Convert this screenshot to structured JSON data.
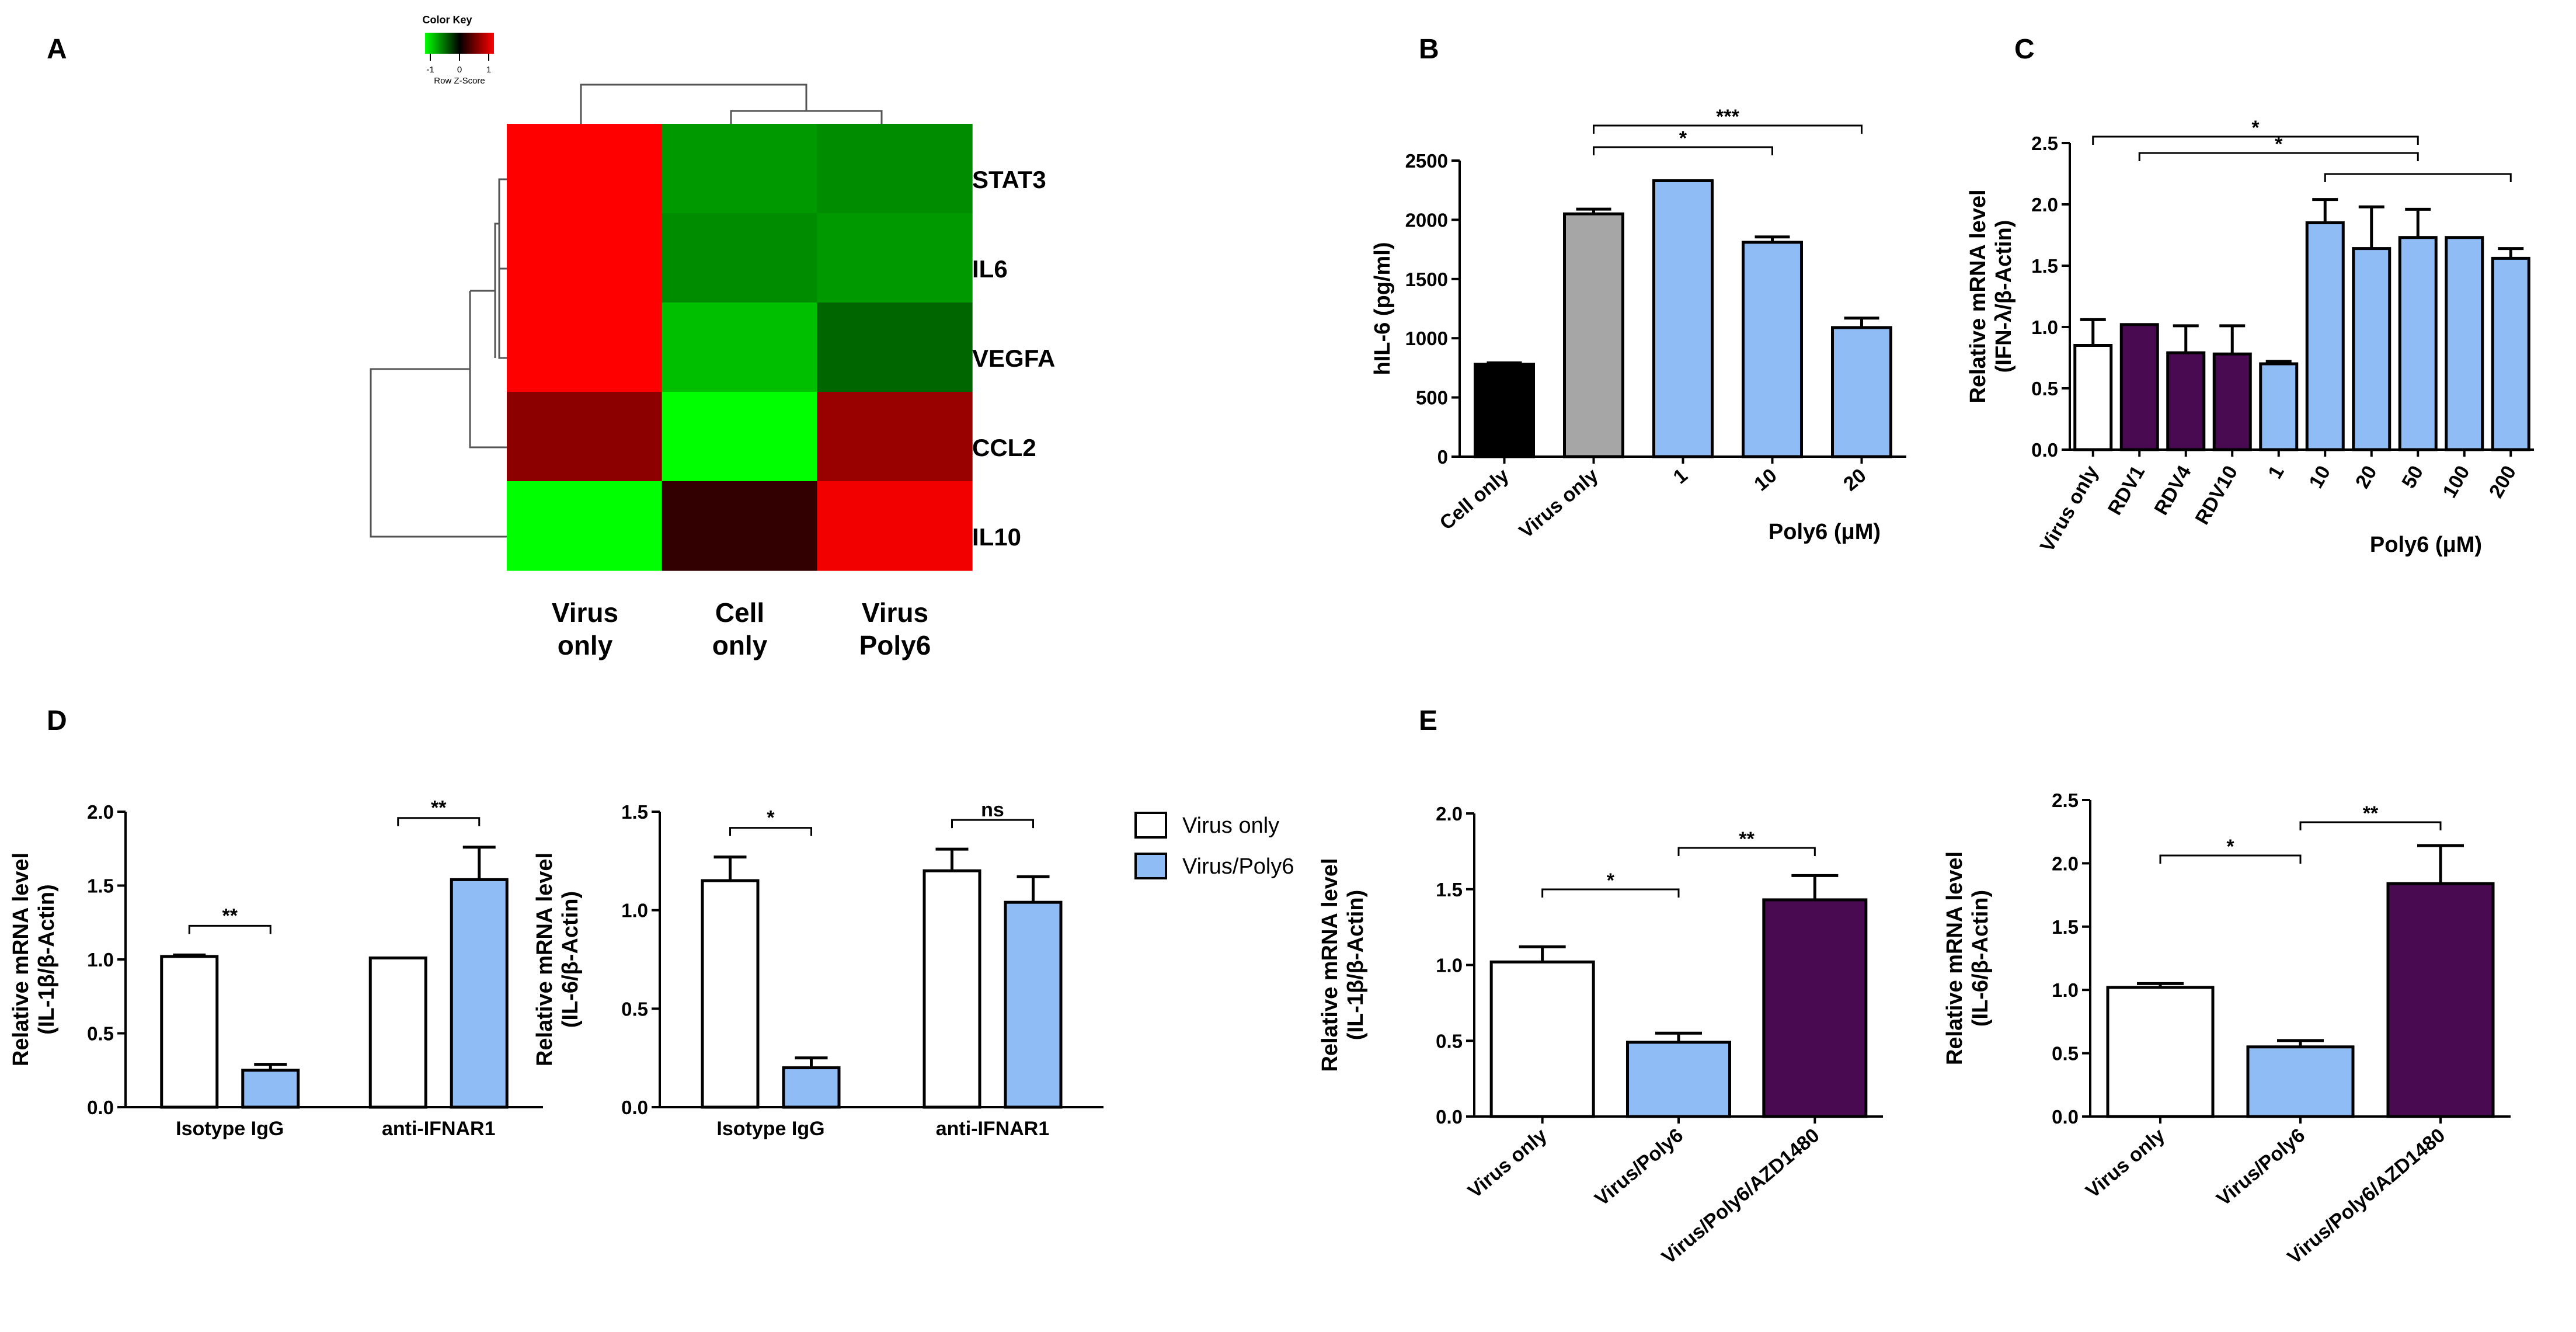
{
  "chart_data": [
    {
      "panel": "A",
      "type": "heatmap",
      "color_key": {
        "title": "Color Key",
        "ticks": [
          "-1",
          "0",
          "1"
        ],
        "xlabel": "Row Z-Score",
        "low_color": "#00ff00",
        "mid_color": "#000000",
        "high_color": "#ff0000"
      },
      "columns": [
        "Virus only",
        "Cell only",
        "Virus Poly6"
      ],
      "column_lines": [
        [
          "Virus",
          "only"
        ],
        [
          "Cell",
          "only"
        ],
        [
          "Virus",
          "Poly6"
        ]
      ],
      "rows": [
        "STAT3",
        "IL6",
        "VEGFA",
        "CCL2",
        "IL10"
      ],
      "zscores": [
        [
          1.15,
          -0.6,
          -0.55
        ],
        [
          1.15,
          -0.55,
          -0.6
        ],
        [
          1.15,
          -0.75,
          -0.4
        ],
        [
          0.55,
          -1.15,
          0.6
        ],
        [
          -1.15,
          0.2,
          0.95
        ]
      ]
    },
    {
      "panel": "B",
      "type": "bar",
      "ylabel": "hIL-6 (pg/ml)",
      "xlabel": "Poly6 (μM)",
      "ylim": [
        0,
        2500
      ],
      "yticks": [
        0,
        500,
        1000,
        1500,
        2000,
        2500
      ],
      "categories": [
        "Cell only",
        "Virus only",
        "1",
        "10",
        "20"
      ],
      "values": [
        780,
        2050,
        2330,
        1810,
        1090
      ],
      "errors": [
        12,
        40,
        0,
        45,
        80
      ],
      "colors": [
        "#000000",
        "#a6a6a6",
        "#8fbcf5",
        "#8fbcf5",
        "#8fbcf5"
      ],
      "significance": [
        {
          "label": "*",
          "from": 1,
          "to": 3
        },
        {
          "label": "***",
          "from": 1,
          "to": 4
        }
      ]
    },
    {
      "panel": "C",
      "type": "bar",
      "ylabel": "Relative mRNA level",
      "ylabel2": "(IFN-λ/β-Actin)",
      "xlabel": "Poly6 (μM)",
      "ylim": [
        0,
        2.5
      ],
      "yticks": [
        "0.0",
        "0.5",
        "1.0",
        "1.5",
        "2.0",
        "2.5"
      ],
      "categories": [
        "Virus only",
        "RDV1",
        "RDV4",
        "RDV10",
        "1",
        "10",
        "20",
        "50",
        "100",
        "200"
      ],
      "values": [
        0.85,
        1.02,
        0.79,
        0.78,
        0.7,
        1.85,
        1.64,
        1.73,
        1.73,
        1.56
      ],
      "errors": [
        0.21,
        0,
        0.22,
        0.23,
        0.02,
        0.19,
        0.34,
        0.23,
        0,
        0.08
      ],
      "colors": [
        "#ffffff",
        "#4a0a52",
        "#4a0a52",
        "#4a0a52",
        "#8fbcf5",
        "#8fbcf5",
        "#8fbcf5",
        "#8fbcf5",
        "#8fbcf5",
        "#8fbcf5"
      ],
      "significance": [
        {
          "label": "*",
          "from": 0,
          "to": 7
        },
        {
          "label": "*",
          "from": 1,
          "to": 7
        },
        {
          "label": "",
          "from": 5,
          "to": 9
        }
      ]
    },
    {
      "panel": "D",
      "type": "bar",
      "ylabel": "Relative mRNA level",
      "ylabel2": "(IL-1β/β-Actin)",
      "ylim": [
        0,
        2.0
      ],
      "yticks": [
        "0.0",
        "0.5",
        "1.0",
        "1.5",
        "2.0"
      ],
      "categories": [
        "Isotype IgG",
        "anti-IFNAR1"
      ],
      "series": [
        {
          "name": "Virus only",
          "values": [
            1.02,
            1.01
          ],
          "errors": [
            0.01,
            0
          ]
        },
        {
          "name": "Virus/Poly6",
          "values": [
            0.25,
            1.54
          ],
          "errors": [
            0.04,
            0.22
          ]
        }
      ],
      "significance": [
        "**",
        "**"
      ]
    },
    {
      "panel": "D2",
      "type": "bar",
      "ylabel": "Relative mRNA level",
      "ylabel2": "(IL-6/β-Actin)",
      "ylim": [
        0,
        1.5
      ],
      "yticks": [
        "0.0",
        "0.5",
        "1.0",
        "1.5"
      ],
      "categories": [
        "Isotype IgG",
        "anti-IFNAR1"
      ],
      "series": [
        {
          "name": "Virus only",
          "values": [
            1.15,
            1.2
          ],
          "errors": [
            0.12,
            0.11
          ]
        },
        {
          "name": "Virus/Poly6",
          "values": [
            0.2,
            1.04
          ],
          "errors": [
            0.05,
            0.13
          ]
        }
      ],
      "significance": [
        "*",
        "ns"
      ],
      "legend": [
        "Virus only",
        "Virus/Poly6"
      ]
    },
    {
      "panel": "E",
      "type": "bar",
      "ylabel": "Relative mRNA level",
      "ylabel2": "(IL-1β/β-Actin)",
      "ylim": [
        0,
        2.0
      ],
      "yticks": [
        "0.0",
        "0.5",
        "1.0",
        "1.5",
        "2.0"
      ],
      "categories": [
        "Virus only",
        "Virus/Poly6",
        "Virus/Poly6/AZD1480"
      ],
      "values": [
        1.02,
        0.49,
        1.43
      ],
      "errors": [
        0.1,
        0.06,
        0.16
      ],
      "colors": [
        "#ffffff",
        "#8fbcf5",
        "#4a0a52"
      ],
      "significance": [
        {
          "label": "*",
          "from": 0,
          "to": 1
        },
        {
          "label": "**",
          "from": 1,
          "to": 2
        }
      ]
    },
    {
      "panel": "E2",
      "type": "bar",
      "ylabel": "Relative mRNA level",
      "ylabel2": "(IL-6/β-Actin)",
      "ylim": [
        0,
        2.5
      ],
      "yticks": [
        "0.0",
        "0.5",
        "1.0",
        "1.5",
        "2.0",
        "2.5"
      ],
      "categories": [
        "Virus only",
        "Virus/Poly6",
        "Virus/Poly6/AZD1480"
      ],
      "values": [
        1.02,
        0.55,
        1.84
      ],
      "errors": [
        0.03,
        0.05,
        0.3
      ],
      "colors": [
        "#ffffff",
        "#8fbcf5",
        "#4a0a52"
      ],
      "significance": [
        {
          "label": "*",
          "from": 0,
          "to": 1
        },
        {
          "label": "**",
          "from": 1,
          "to": 2
        }
      ]
    }
  ]
}
